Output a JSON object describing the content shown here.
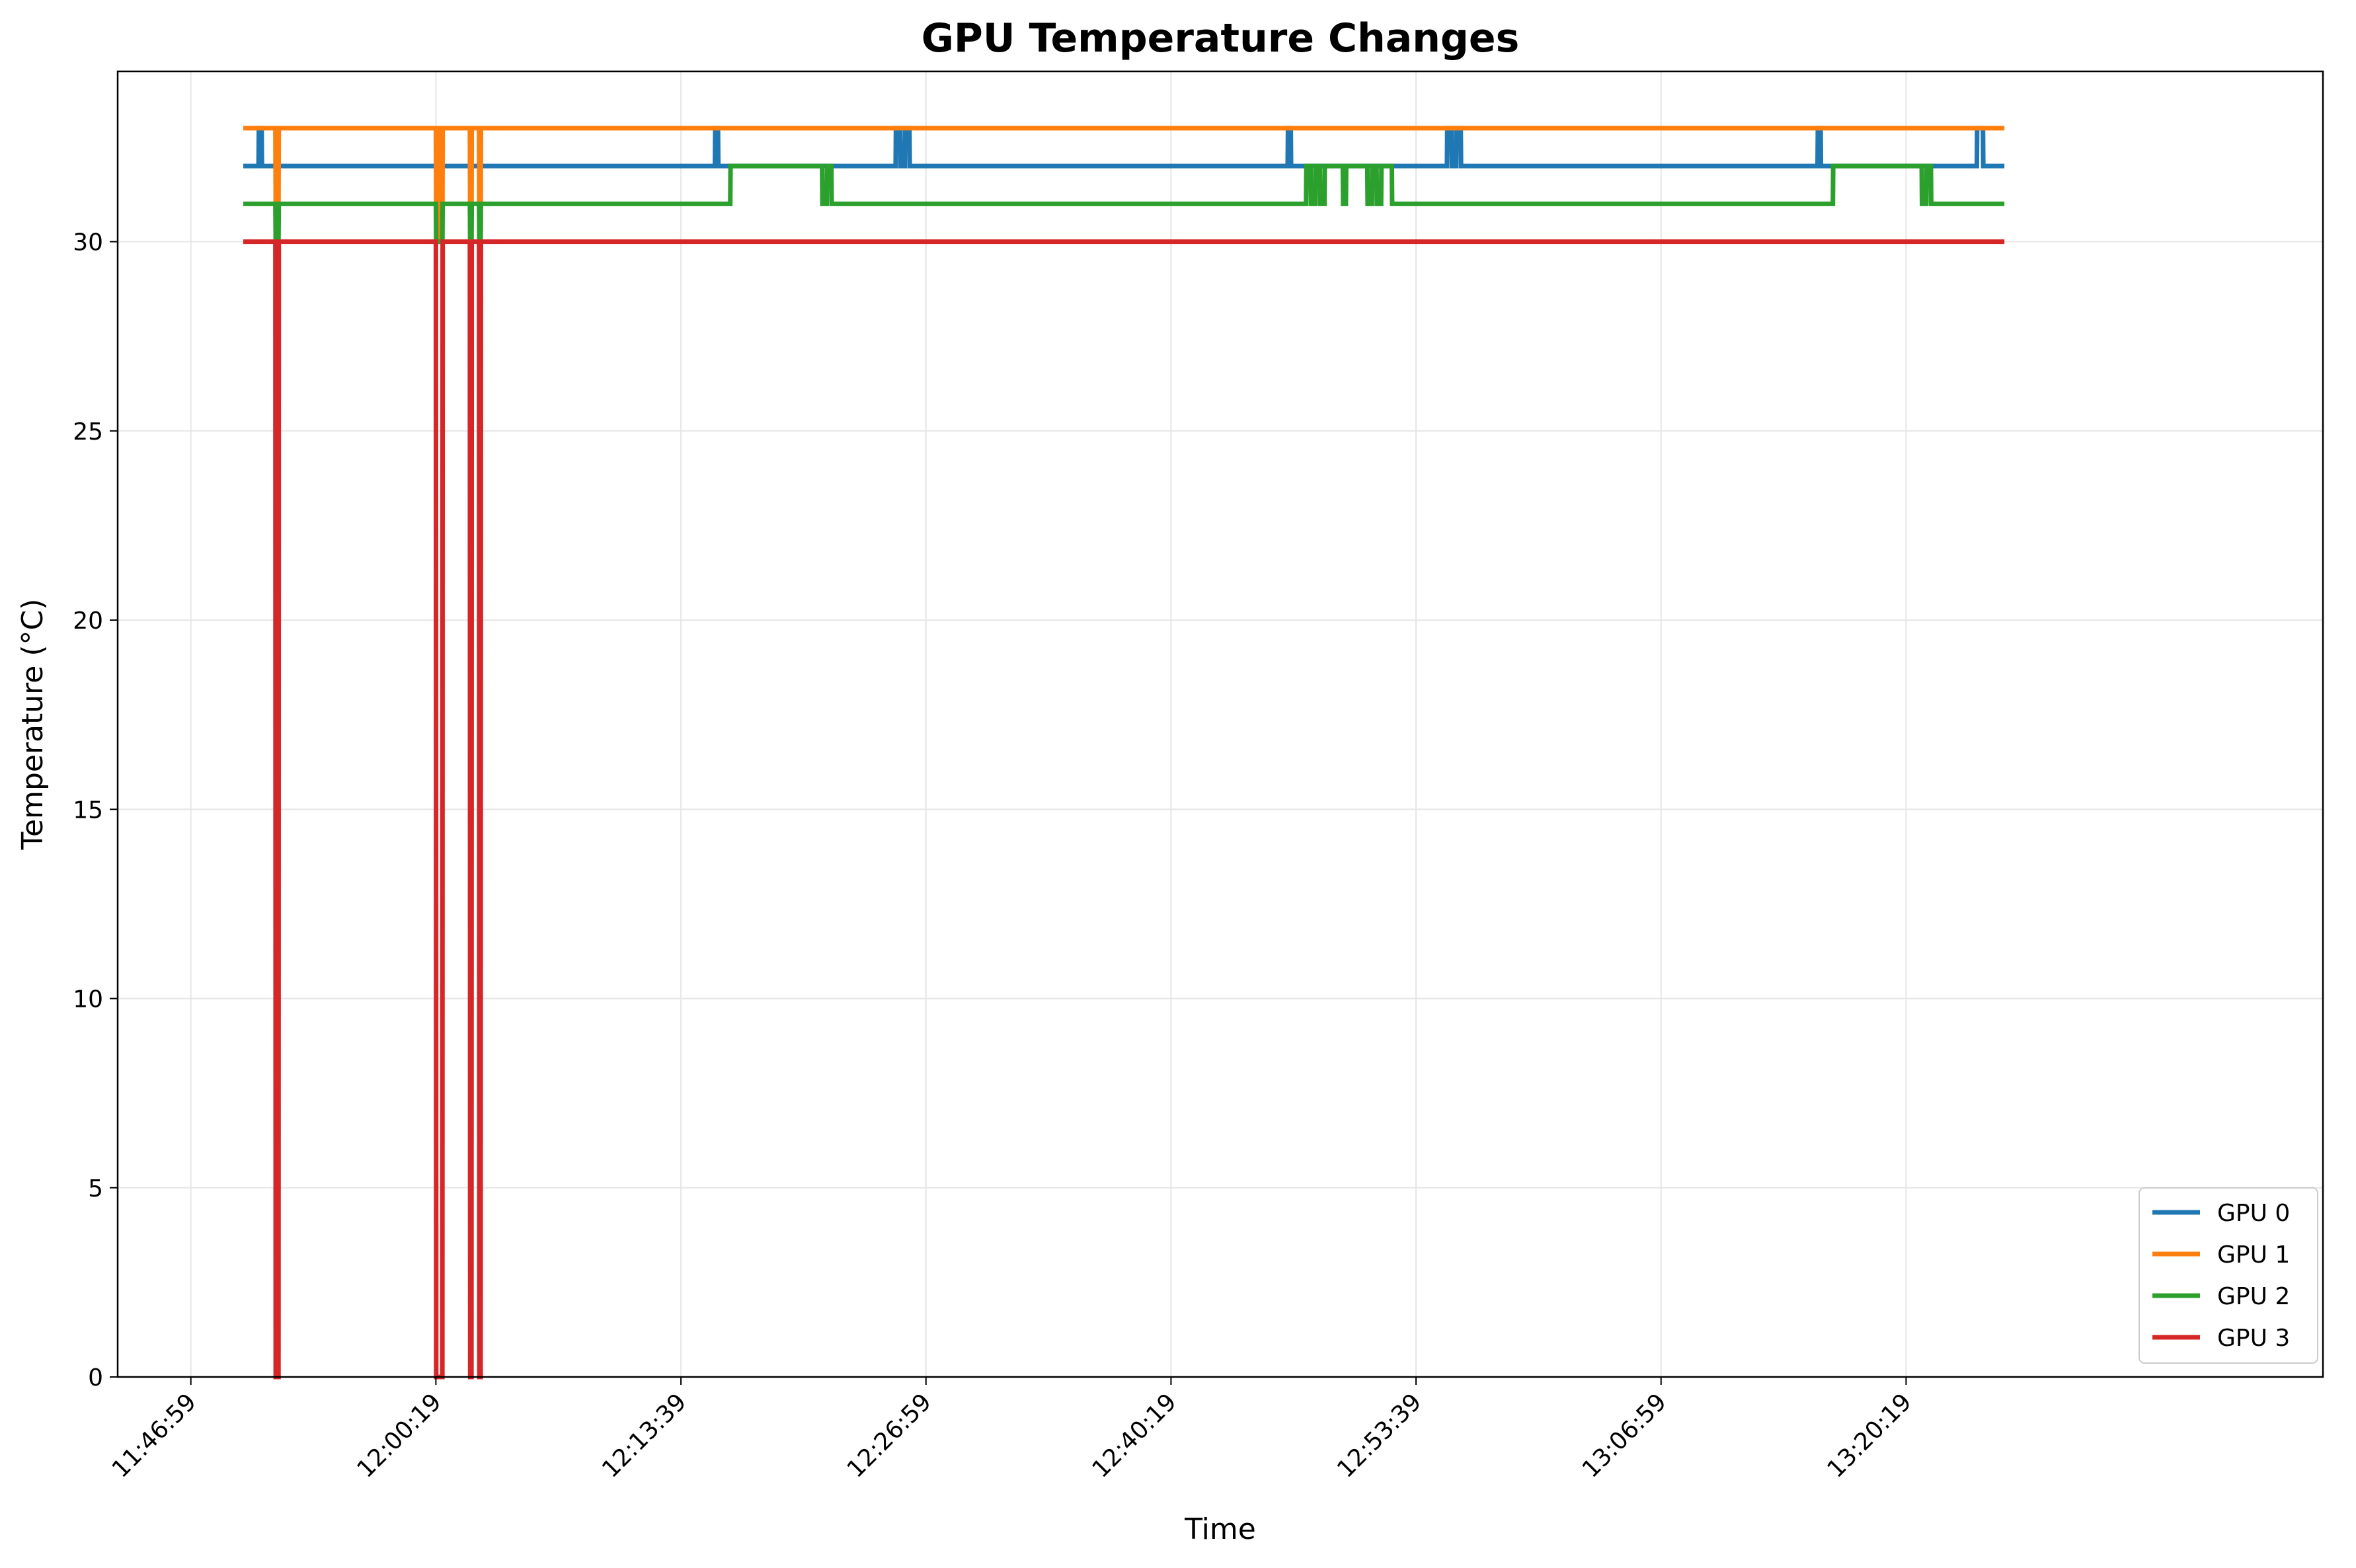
{
  "chart_data": {
    "type": "line",
    "title": "GPU Temperature Changes",
    "xlabel": "Time",
    "ylabel": "Temperature (°C)",
    "x_axis": {
      "type": "time",
      "range": [
        "11:43:00",
        "13:43:00"
      ],
      "ticks": [
        "11:46:59",
        "12:00:19",
        "12:13:39",
        "12:26:59",
        "12:40:19",
        "12:53:39",
        "13:06:59",
        "13:20:19"
      ]
    },
    "y_axis": {
      "range": [
        0,
        34.5
      ],
      "ticks": [
        0,
        5,
        10,
        15,
        20,
        25,
        30
      ]
    },
    "grid": true,
    "legend_position": "lower-right",
    "series": [
      {
        "name": "GPU 0",
        "color": "#1f77b4",
        "points": [
          [
            "11:49:50",
            32
          ],
          [
            "11:50:40",
            32
          ],
          [
            "11:50:41",
            33
          ],
          [
            "11:50:50",
            33
          ],
          [
            "11:50:51",
            32
          ],
          [
            "12:15:30",
            32
          ],
          [
            "12:15:31",
            33
          ],
          [
            "12:15:40",
            33
          ],
          [
            "12:15:41",
            32
          ],
          [
            "12:25:20",
            32
          ],
          [
            "12:25:21",
            33
          ],
          [
            "12:25:35",
            33
          ],
          [
            "12:25:36",
            32
          ],
          [
            "12:25:50",
            32
          ],
          [
            "12:25:51",
            33
          ],
          [
            "12:26:05",
            33
          ],
          [
            "12:26:06",
            32
          ],
          [
            "12:46:40",
            32
          ],
          [
            "12:46:41",
            33
          ],
          [
            "12:46:50",
            33
          ],
          [
            "12:46:51",
            32
          ],
          [
            "12:55:20",
            32
          ],
          [
            "12:55:21",
            33
          ],
          [
            "12:55:35",
            33
          ],
          [
            "12:55:36",
            32
          ],
          [
            "12:55:50",
            32
          ],
          [
            "12:55:51",
            33
          ],
          [
            "12:56:05",
            33
          ],
          [
            "12:56:06",
            32
          ],
          [
            "13:15:30",
            32
          ],
          [
            "13:15:31",
            33
          ],
          [
            "13:15:40",
            33
          ],
          [
            "13:15:41",
            32
          ],
          [
            "13:24:10",
            32
          ],
          [
            "13:24:11",
            33
          ],
          [
            "13:24:30",
            33
          ],
          [
            "13:24:31",
            32
          ],
          [
            "13:25:40",
            32
          ]
        ]
      },
      {
        "name": "GPU 1",
        "color": "#ff7f0e",
        "points": [
          [
            "11:49:50",
            33
          ],
          [
            "11:51:35",
            33
          ],
          [
            "11:51:36",
            31
          ],
          [
            "11:51:45",
            31
          ],
          [
            "11:51:46",
            33
          ],
          [
            "12:00:19",
            33
          ],
          [
            "12:00:20",
            30
          ],
          [
            "12:00:25",
            30
          ],
          [
            "12:00:26",
            33
          ],
          [
            "12:00:35",
            33
          ],
          [
            "12:00:36",
            30
          ],
          [
            "12:00:40",
            30
          ],
          [
            "12:00:41",
            33
          ],
          [
            "12:02:10",
            33
          ],
          [
            "12:02:11",
            30
          ],
          [
            "12:02:15",
            30
          ],
          [
            "12:02:16",
            33
          ],
          [
            "12:02:40",
            33
          ],
          [
            "12:02:41",
            30
          ],
          [
            "12:02:45",
            30
          ],
          [
            "12:02:46",
            33
          ],
          [
            "13:25:40",
            33
          ]
        ]
      },
      {
        "name": "GPU 2",
        "color": "#2ca02c",
        "points": [
          [
            "11:49:50",
            31
          ],
          [
            "11:51:35",
            31
          ],
          [
            "11:51:36",
            30
          ],
          [
            "11:51:45",
            30
          ],
          [
            "11:51:46",
            31
          ],
          [
            "12:00:19",
            31
          ],
          [
            "12:00:20",
            30
          ],
          [
            "12:00:40",
            30
          ],
          [
            "12:00:41",
            31
          ],
          [
            "12:02:10",
            31
          ],
          [
            "12:02:11",
            30
          ],
          [
            "12:02:15",
            30
          ],
          [
            "12:02:16",
            31
          ],
          [
            "12:02:40",
            31
          ],
          [
            "12:02:41",
            30
          ],
          [
            "12:02:45",
            30
          ],
          [
            "12:02:46",
            31
          ],
          [
            "12:16:20",
            31
          ],
          [
            "12:16:21",
            32
          ],
          [
            "12:21:20",
            32
          ],
          [
            "12:21:21",
            31
          ],
          [
            "12:21:35",
            31
          ],
          [
            "12:21:36",
            32
          ],
          [
            "12:21:50",
            32
          ],
          [
            "12:21:51",
            31
          ],
          [
            "12:47:40",
            31
          ],
          [
            "12:47:41",
            32
          ],
          [
            "12:47:55",
            32
          ],
          [
            "12:47:56",
            31
          ],
          [
            "12:48:10",
            31
          ],
          [
            "12:48:11",
            32
          ],
          [
            "12:48:25",
            32
          ],
          [
            "12:48:26",
            31
          ],
          [
            "12:48:40",
            31
          ],
          [
            "12:48:41",
            32
          ],
          [
            "12:49:40",
            32
          ],
          [
            "12:49:41",
            31
          ],
          [
            "12:49:50",
            31
          ],
          [
            "12:49:51",
            32
          ],
          [
            "12:51:00",
            32
          ],
          [
            "12:51:01",
            31
          ],
          [
            "12:51:15",
            31
          ],
          [
            "12:51:16",
            32
          ],
          [
            "12:51:30",
            32
          ],
          [
            "12:51:31",
            31
          ],
          [
            "12:51:45",
            31
          ],
          [
            "12:51:46",
            32
          ],
          [
            "12:52:20",
            32
          ],
          [
            "12:52:21",
            31
          ],
          [
            "13:16:20",
            31
          ],
          [
            "13:16:21",
            32
          ],
          [
            "13:21:10",
            32
          ],
          [
            "13:21:11",
            31
          ],
          [
            "13:21:25",
            31
          ],
          [
            "13:21:26",
            32
          ],
          [
            "13:21:40",
            32
          ],
          [
            "13:21:41",
            31
          ],
          [
            "13:25:40",
            31
          ]
        ]
      },
      {
        "name": "GPU 3",
        "color": "#d62728",
        "points": [
          [
            "11:49:50",
            30
          ],
          [
            "11:51:35",
            30
          ],
          [
            "11:51:36",
            0
          ],
          [
            "11:51:45",
            0
          ],
          [
            "11:51:46",
            30
          ],
          [
            "12:00:19",
            30
          ],
          [
            "12:00:20",
            0
          ],
          [
            "12:00:40",
            0
          ],
          [
            "12:00:41",
            30
          ],
          [
            "12:02:10",
            30
          ],
          [
            "12:02:11",
            0
          ],
          [
            "12:02:15",
            0
          ],
          [
            "12:02:16",
            30
          ],
          [
            "12:02:40",
            30
          ],
          [
            "12:02:41",
            0
          ],
          [
            "12:02:45",
            0
          ],
          [
            "12:02:46",
            30
          ],
          [
            "13:25:40",
            30
          ]
        ]
      }
    ]
  }
}
